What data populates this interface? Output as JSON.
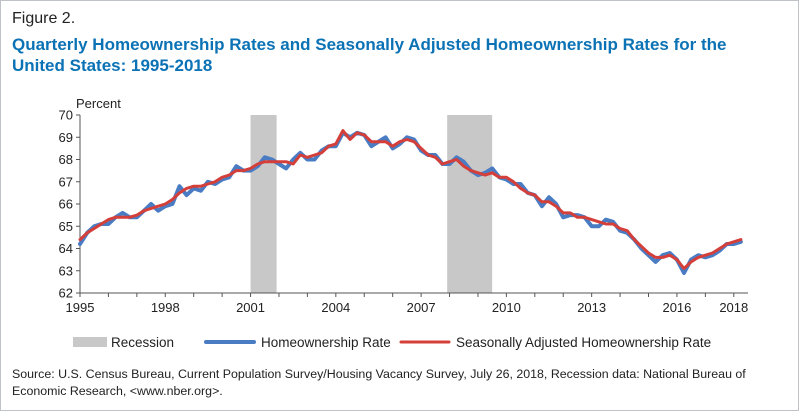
{
  "figure_label": "Figure 2.",
  "title": "Quarterly Homeownership Rates and Seasonally Adjusted Homeownership Rates for the United States: 1995-2018",
  "source": "Source: U.S. Census Bureau, Current Population Survey/Housing Vacancy Survey, July 26, 2018, Recession data: National Bureau of Economic Research, <www.nber.org>.",
  "colors": {
    "title": "#0b72b5",
    "homeownership": "#4a7cc4",
    "seasonally_adjusted": "#d43f3a",
    "recession": "#c8c8c8",
    "axis": "#555555"
  },
  "chart_data": {
    "type": "line",
    "title": "Quarterly Homeownership Rates and Seasonally Adjusted Homeownership Rates for the United States: 1995-2018",
    "ylabel": "Percent",
    "xlabel": "",
    "xlim": [
      1995,
      2018.5
    ],
    "ylim": [
      62,
      70
    ],
    "yticks": [
      62,
      63,
      64,
      65,
      66,
      67,
      68,
      69,
      70
    ],
    "xticks": [
      1995,
      1998,
      2001,
      2004,
      2007,
      2010,
      2013,
      2016,
      2018
    ],
    "grid": false,
    "recessions": [
      [
        2001.0,
        2001.917
      ],
      [
        2007.917,
        2009.5
      ]
    ],
    "legend": [
      "Recession",
      "Homeownership Rate",
      "Seasonally Adjusted Homeownership Rate"
    ],
    "legend_position": "bottom",
    "x": [
      1995.0,
      1995.25,
      1995.5,
      1995.75,
      1996.0,
      1996.25,
      1996.5,
      1996.75,
      1997.0,
      1997.25,
      1997.5,
      1997.75,
      1998.0,
      1998.25,
      1998.5,
      1998.75,
      1999.0,
      1999.25,
      1999.5,
      1999.75,
      2000.0,
      2000.25,
      2000.5,
      2000.75,
      2001.0,
      2001.25,
      2001.5,
      2001.75,
      2002.0,
      2002.25,
      2002.5,
      2002.75,
      2003.0,
      2003.25,
      2003.5,
      2003.75,
      2004.0,
      2004.25,
      2004.5,
      2004.75,
      2005.0,
      2005.25,
      2005.5,
      2005.75,
      2006.0,
      2006.25,
      2006.5,
      2006.75,
      2007.0,
      2007.25,
      2007.5,
      2007.75,
      2008.0,
      2008.25,
      2008.5,
      2008.75,
      2009.0,
      2009.25,
      2009.5,
      2009.75,
      2010.0,
      2010.25,
      2010.5,
      2010.75,
      2011.0,
      2011.25,
      2011.5,
      2011.75,
      2012.0,
      2012.25,
      2012.5,
      2012.75,
      2013.0,
      2013.25,
      2013.5,
      2013.75,
      2014.0,
      2014.25,
      2014.5,
      2014.75,
      2015.0,
      2015.25,
      2015.5,
      2015.75,
      2016.0,
      2016.25,
      2016.5,
      2016.75,
      2017.0,
      2017.25,
      2017.5,
      2017.75,
      2018.0,
      2018.25
    ],
    "series": [
      {
        "name": "Homeownership Rate",
        "values": [
          64.2,
          64.7,
          65.0,
          65.1,
          65.1,
          65.4,
          65.6,
          65.4,
          65.4,
          65.7,
          66.0,
          65.7,
          65.9,
          66.0,
          66.8,
          66.4,
          66.7,
          66.6,
          67.0,
          66.9,
          67.1,
          67.2,
          67.7,
          67.5,
          67.5,
          67.7,
          68.1,
          68.0,
          67.8,
          67.6,
          68.0,
          68.3,
          68.0,
          68.0,
          68.4,
          68.6,
          68.6,
          69.2,
          69.0,
          69.2,
          69.1,
          68.6,
          68.8,
          69.0,
          68.5,
          68.7,
          69.0,
          68.9,
          68.4,
          68.2,
          68.2,
          67.8,
          67.8,
          68.1,
          67.9,
          67.5,
          67.3,
          67.4,
          67.6,
          67.2,
          67.1,
          66.9,
          66.9,
          66.5,
          66.4,
          65.9,
          66.3,
          66.0,
          65.4,
          65.5,
          65.5,
          65.4,
          65.0,
          65.0,
          65.3,
          65.2,
          64.8,
          64.7,
          64.4,
          64.0,
          63.7,
          63.4,
          63.7,
          63.8,
          63.5,
          62.9,
          63.5,
          63.7,
          63.6,
          63.7,
          63.9,
          64.2,
          64.2,
          64.3
        ]
      },
      {
        "name": "Seasonally Adjusted Homeownership Rate",
        "values": [
          64.4,
          64.7,
          64.9,
          65.1,
          65.3,
          65.4,
          65.4,
          65.4,
          65.5,
          65.7,
          65.8,
          65.9,
          66.0,
          66.2,
          66.5,
          66.7,
          66.8,
          66.8,
          66.9,
          67.0,
          67.2,
          67.3,
          67.5,
          67.5,
          67.6,
          67.8,
          67.9,
          67.9,
          67.9,
          67.9,
          67.8,
          68.2,
          68.1,
          68.2,
          68.3,
          68.6,
          68.7,
          69.3,
          68.9,
          69.2,
          69.1,
          68.8,
          68.8,
          68.8,
          68.6,
          68.8,
          68.9,
          68.8,
          68.5,
          68.2,
          68.1,
          67.8,
          67.9,
          68.0,
          67.7,
          67.5,
          67.4,
          67.3,
          67.4,
          67.2,
          67.2,
          67.0,
          66.7,
          66.5,
          66.4,
          66.1,
          66.1,
          65.9,
          65.6,
          65.6,
          65.4,
          65.4,
          65.3,
          65.2,
          65.1,
          65.1,
          64.9,
          64.8,
          64.4,
          64.1,
          63.8,
          63.6,
          63.6,
          63.7,
          63.5,
          63.1,
          63.4,
          63.6,
          63.7,
          63.8,
          64.0,
          64.2,
          64.3,
          64.4
        ]
      }
    ]
  }
}
